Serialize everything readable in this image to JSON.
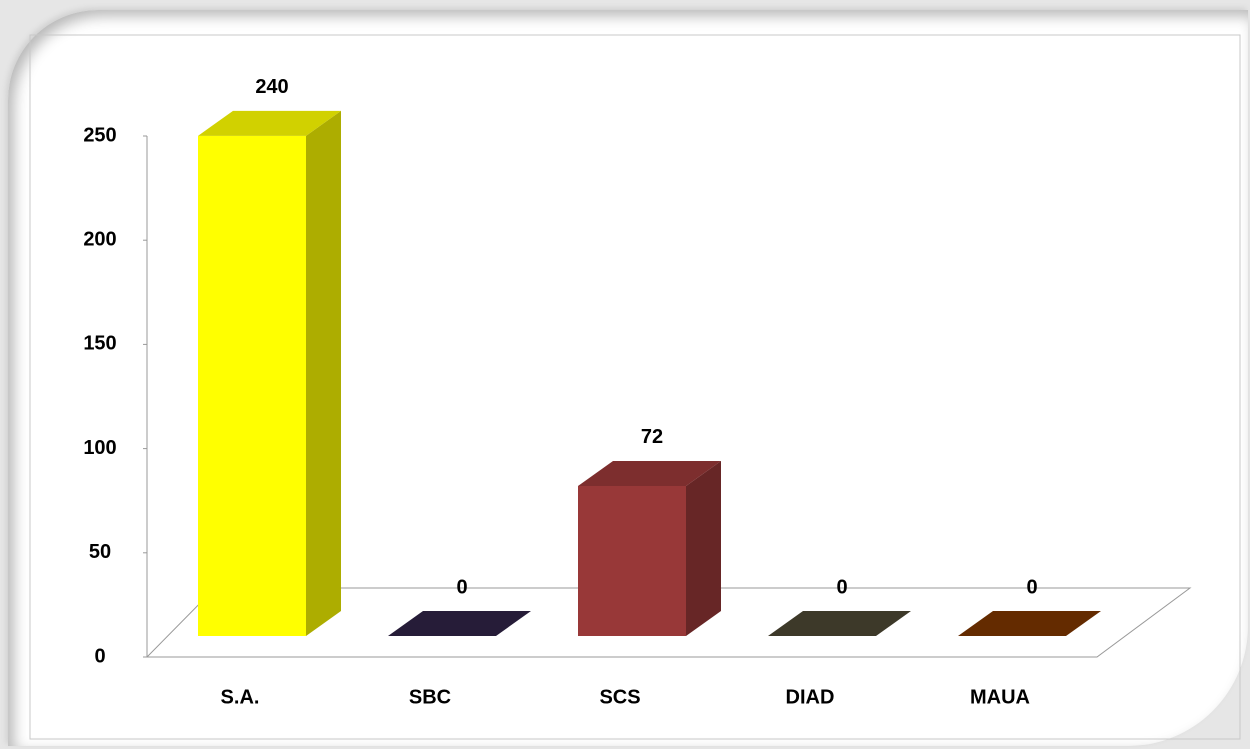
{
  "chart_data": {
    "type": "bar3d",
    "categories": [
      "S.A.",
      "SBC",
      "SCS",
      "DIAD",
      "MAUA"
    ],
    "values": [
      240,
      0,
      72,
      0,
      0
    ],
    "colors": [
      "#ffff00",
      "#2e2244",
      "#983838",
      "#4a4632",
      "#7a3400"
    ],
    "ylim": [
      0,
      250
    ],
    "yticks": [
      0,
      50,
      100,
      150,
      200,
      250
    ]
  }
}
